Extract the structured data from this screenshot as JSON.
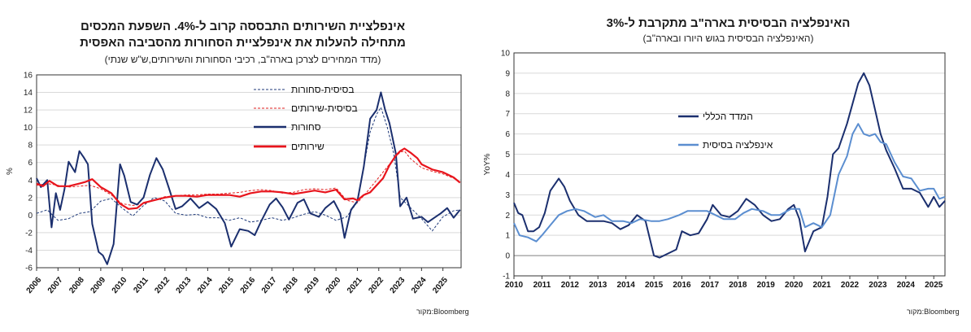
{
  "left_chart": {
    "title_lines": [
      "אינפלציית השירותים התבססה קרוב ל-4%. השפעת המכסים",
      "מתחילה להעלות את אינפלציית הסחורות מהסביבה האפסית"
    ],
    "subtitle": "(מדד המחירים לצרכן בארה\"ב, רכיבי הסחורות והשירותים,ש\"ש שנתי)",
    "source": "מקור:Bloomberg",
    "ylabel": "%",
    "y_ticks": [
      "16",
      "14",
      "12",
      "10",
      "8",
      "6",
      "4",
      "2",
      "0",
      "-2",
      "-4",
      "-6"
    ],
    "x_ticks": [
      "2006",
      "2007",
      "2008",
      "2009",
      "2010",
      "2011",
      "2012",
      "2013",
      "2014",
      "2015",
      "2016",
      "2017",
      "2018",
      "2019",
      "2020",
      "2021",
      "2022",
      "2023",
      "2024",
      "2025"
    ],
    "legend": [
      "בסיסית-סחורות",
      "בסיסית-שירותים",
      "סחורות",
      "שירותים"
    ]
  },
  "right_chart": {
    "title": "האינפלציה הבסיסית בארה\"ב מתקרבת ל-3%",
    "subtitle": "(האינפלציה הבסיסית בגוש היורו ובארה\"ב)",
    "source": "מקור:Bloomberg",
    "ylabel": "YoY%",
    "y_ticks": [
      "10",
      "9",
      "8",
      "7",
      "6",
      "5",
      "4",
      "3",
      "2",
      "1",
      "0",
      "-1"
    ],
    "x_ticks": [
      "2010",
      "2011",
      "2012",
      "2013",
      "2014",
      "2015",
      "2016",
      "2017",
      "2018",
      "2019",
      "2020",
      "2021",
      "2022",
      "2023",
      "2024",
      "2025"
    ],
    "legend": [
      "המדד הכללי",
      "אינפלציה בסיסית"
    ]
  },
  "chart_data": [
    {
      "type": "line",
      "title": "אינפלציית השירותים התבססה קרוב ל-4%. השפעת המכסים מתחילה להעלות את אינפלציית הסחורות מהסביבה האפסית",
      "xlabel": "",
      "ylabel": "%",
      "xlim": [
        2006.0,
        2025.85
      ],
      "ylim": [
        -6,
        16
      ],
      "grid": "horizontal",
      "legend_position": "top-right",
      "series": [
        {
          "name": "בסיסית-סחורות",
          "style": "dashed",
          "color": "#1f3a7a",
          "x": [
            2006.0,
            2006.5,
            2007.0,
            2007.5,
            2008.0,
            2008.5,
            2009.0,
            2009.5,
            2010.0,
            2010.5,
            2011.0,
            2011.5,
            2012.0,
            2012.5,
            2013.0,
            2013.5,
            2014.0,
            2014.5,
            2015.0,
            2015.5,
            2016.0,
            2016.5,
            2017.0,
            2017.5,
            2018.0,
            2018.5,
            2019.0,
            2019.5,
            2020.0,
            2020.5,
            2021.0,
            2021.3,
            2021.6,
            2021.9,
            2022.1,
            2022.4,
            2022.7,
            2023.0,
            2023.5,
            2024.0,
            2024.5,
            2025.0,
            2025.5,
            2025.8
          ],
          "y": [
            0.2,
            0.6,
            -0.6,
            -0.4,
            0.2,
            0.4,
            1.6,
            1.9,
            0.8,
            -0.1,
            1.1,
            2.0,
            1.6,
            0.2,
            0.0,
            0.1,
            -0.3,
            -0.3,
            -0.6,
            -0.3,
            -0.8,
            -0.6,
            -0.3,
            -0.6,
            -0.3,
            0.1,
            0.4,
            0.0,
            -0.6,
            -0.2,
            1.5,
            5.5,
            9.5,
            11.5,
            12.3,
            10.0,
            7.0,
            2.0,
            0.8,
            -0.4,
            -1.8,
            -0.2,
            0.5,
            0.6
          ]
        },
        {
          "name": "בסיסית-שירותים",
          "style": "dashed",
          "color": "#e02020",
          "x": [
            2006.0,
            2006.5,
            2007.0,
            2007.5,
            2008.0,
            2008.5,
            2009.0,
            2009.5,
            2010.0,
            2010.5,
            2011.0,
            2011.5,
            2012.0,
            2012.5,
            2013.0,
            2013.5,
            2014.0,
            2014.5,
            2015.0,
            2015.5,
            2016.0,
            2016.5,
            2017.0,
            2017.5,
            2018.0,
            2018.5,
            2019.0,
            2019.5,
            2020.0,
            2020.5,
            2021.0,
            2021.5,
            2022.0,
            2022.5,
            2023.0,
            2023.2,
            2023.5,
            2024.0,
            2024.5,
            2025.0,
            2025.5,
            2025.8
          ],
          "y": [
            3.4,
            3.6,
            3.4,
            3.2,
            3.3,
            3.4,
            3.0,
            2.3,
            1.3,
            1.1,
            1.3,
            1.7,
            2.1,
            2.2,
            2.3,
            2.3,
            2.4,
            2.4,
            2.5,
            2.6,
            2.8,
            2.9,
            2.8,
            2.5,
            2.6,
            2.9,
            3.0,
            2.9,
            3.1,
            1.7,
            1.4,
            2.8,
            4.3,
            5.8,
            7.2,
            7.3,
            6.4,
            5.4,
            5.0,
            4.7,
            4.2,
            3.8
          ]
        },
        {
          "name": "סחורות",
          "style": "solid",
          "color": "#1b2f6e",
          "x": [
            2006.0,
            2006.2,
            2006.5,
            2006.7,
            2006.9,
            2007.1,
            2007.3,
            2007.5,
            2007.8,
            2008.0,
            2008.2,
            2008.4,
            2008.6,
            2008.9,
            2009.1,
            2009.3,
            2009.6,
            2009.9,
            2010.1,
            2010.4,
            2010.7,
            2011.0,
            2011.3,
            2011.6,
            2011.9,
            2012.2,
            2012.5,
            2012.8,
            2013.2,
            2013.6,
            2014.0,
            2014.4,
            2014.8,
            2015.1,
            2015.5,
            2015.9,
            2016.2,
            2016.5,
            2016.9,
            2017.2,
            2017.5,
            2017.8,
            2018.2,
            2018.5,
            2018.8,
            2019.2,
            2019.5,
            2019.9,
            2020.2,
            2020.4,
            2020.7,
            2021.0,
            2021.3,
            2021.6,
            2021.9,
            2022.1,
            2022.3,
            2022.5,
            2022.8,
            2023.0,
            2023.3,
            2023.6,
            2024.0,
            2024.3,
            2024.6,
            2024.9,
            2025.2,
            2025.5,
            2025.8
          ],
          "y": [
            4.2,
            3.2,
            4.0,
            -1.4,
            2.5,
            0.6,
            2.9,
            6.1,
            4.9,
            7.3,
            6.6,
            5.8,
            -1.0,
            -4.2,
            -4.6,
            -5.6,
            -3.3,
            5.8,
            4.5,
            1.5,
            1.2,
            2.0,
            4.6,
            6.5,
            5.2,
            3.0,
            0.7,
            1.0,
            1.9,
            0.8,
            1.5,
            0.7,
            -0.9,
            -3.6,
            -1.6,
            -1.8,
            -2.3,
            -0.7,
            1.2,
            1.9,
            0.9,
            -0.5,
            1.4,
            1.8,
            0.2,
            -0.2,
            0.8,
            1.6,
            0.2,
            -2.6,
            0.6,
            1.6,
            5.5,
            11.0,
            12.0,
            14.0,
            12.0,
            10.5,
            7.0,
            1.0,
            2.0,
            -0.4,
            -0.2,
            -0.8,
            -0.3,
            0.2,
            0.8,
            -0.3,
            0.6
          ]
        },
        {
          "name": "שירותים",
          "style": "solid",
          "color": "#e8141c",
          "x": [
            2006.0,
            2006.3,
            2006.6,
            2007.0,
            2007.5,
            2008.0,
            2008.3,
            2008.6,
            2009.0,
            2009.5,
            2009.9,
            2010.3,
            2010.7,
            2011.0,
            2011.5,
            2012.0,
            2012.5,
            2013.0,
            2013.5,
            2014.0,
            2014.5,
            2015.0,
            2015.5,
            2016.0,
            2016.5,
            2017.0,
            2017.5,
            2018.0,
            2018.5,
            2019.0,
            2019.5,
            2020.0,
            2020.4,
            2020.8,
            2021.0,
            2021.3,
            2021.6,
            2021.9,
            2022.2,
            2022.5,
            2022.8,
            2023.0,
            2023.2,
            2023.5,
            2023.8,
            2024.0,
            2024.5,
            2025.0,
            2025.5,
            2025.8
          ],
          "y": [
            3.6,
            3.3,
            3.9,
            3.3,
            3.3,
            3.6,
            3.8,
            4.1,
            3.2,
            2.5,
            1.3,
            0.7,
            0.8,
            1.4,
            1.7,
            2.0,
            2.2,
            2.2,
            2.1,
            2.3,
            2.3,
            2.3,
            2.1,
            2.5,
            2.7,
            2.7,
            2.6,
            2.4,
            2.6,
            2.8,
            2.6,
            2.9,
            1.8,
            1.9,
            1.7,
            2.3,
            2.6,
            3.4,
            4.2,
            5.7,
            6.8,
            7.3,
            7.6,
            7.1,
            6.5,
            5.8,
            5.2,
            4.9,
            4.3,
            3.7
          ]
        }
      ]
    },
    {
      "type": "line",
      "title": "האינפלציה הבסיסית בארה\"ב מתקרבת ל-3%",
      "subtitle": "(האינפלציה הבסיסית בגוש היורו ובארה\"ב)",
      "xlabel": "",
      "ylabel": "YoY%",
      "xlim": [
        2010.0,
        2025.4
      ],
      "ylim": [
        -1,
        10
      ],
      "grid": "horizontal",
      "legend_position": "left-middle",
      "series": [
        {
          "name": "המדד הכללי",
          "style": "solid",
          "color": "#1b2f6e",
          "x": [
            2010.0,
            2010.15,
            2010.3,
            2010.5,
            2010.7,
            2010.9,
            2011.1,
            2011.3,
            2011.6,
            2011.8,
            2012.0,
            2012.3,
            2012.6,
            2012.9,
            2013.2,
            2013.5,
            2013.8,
            2014.1,
            2014.4,
            2014.7,
            2015.0,
            2015.2,
            2015.5,
            2015.8,
            2016.0,
            2016.3,
            2016.6,
            2016.9,
            2017.1,
            2017.4,
            2017.7,
            2018.0,
            2018.3,
            2018.6,
            2018.9,
            2019.2,
            2019.5,
            2019.8,
            2020.0,
            2020.2,
            2020.4,
            2020.7,
            2021.0,
            2021.2,
            2021.4,
            2021.6,
            2021.9,
            2022.1,
            2022.3,
            2022.5,
            2022.7,
            2022.9,
            2023.1,
            2023.3,
            2023.6,
            2023.9,
            2024.2,
            2024.5,
            2024.8,
            2025.0,
            2025.2,
            2025.4
          ],
          "y": [
            2.6,
            2.1,
            2.0,
            1.2,
            1.2,
            1.4,
            2.1,
            3.2,
            3.8,
            3.4,
            2.7,
            2.0,
            1.7,
            1.7,
            1.7,
            1.6,
            1.3,
            1.5,
            2.0,
            1.7,
            0.0,
            -0.1,
            0.1,
            0.3,
            1.2,
            1.0,
            1.1,
            1.8,
            2.5,
            2.0,
            1.9,
            2.2,
            2.8,
            2.5,
            2.0,
            1.7,
            1.8,
            2.3,
            2.5,
            1.8,
            0.2,
            1.2,
            1.4,
            2.9,
            5.0,
            5.3,
            6.5,
            7.5,
            8.5,
            9.0,
            8.4,
            7.2,
            6.0,
            5.2,
            4.3,
            3.3,
            3.3,
            3.1,
            2.4,
            2.9,
            2.4,
            2.7
          ]
        },
        {
          "name": "אינפלציה בסיסית",
          "style": "solid",
          "color": "#5b8ed0",
          "x": [
            2010.0,
            2010.2,
            2010.5,
            2010.8,
            2011.0,
            2011.3,
            2011.6,
            2011.9,
            2012.2,
            2012.5,
            2012.9,
            2013.2,
            2013.5,
            2013.9,
            2014.2,
            2014.5,
            2014.9,
            2015.2,
            2015.5,
            2015.9,
            2016.2,
            2016.6,
            2016.9,
            2017.2,
            2017.5,
            2017.9,
            2018.2,
            2018.5,
            2018.9,
            2019.2,
            2019.5,
            2019.9,
            2020.2,
            2020.4,
            2020.7,
            2021.0,
            2021.3,
            2021.6,
            2021.9,
            2022.1,
            2022.3,
            2022.5,
            2022.7,
            2022.9,
            2023.1,
            2023.3,
            2023.6,
            2023.9,
            2024.2,
            2024.5,
            2024.8,
            2025.0,
            2025.2,
            2025.4
          ],
          "y": [
            1.6,
            1.0,
            0.9,
            0.7,
            1.0,
            1.5,
            2.0,
            2.2,
            2.3,
            2.2,
            1.9,
            2.0,
            1.7,
            1.7,
            1.6,
            1.8,
            1.7,
            1.7,
            1.8,
            2.0,
            2.2,
            2.2,
            2.2,
            2.0,
            1.8,
            1.8,
            2.1,
            2.3,
            2.2,
            2.0,
            2.0,
            2.3,
            2.3,
            1.4,
            1.6,
            1.4,
            2.0,
            4.0,
            4.9,
            6.0,
            6.5,
            6.0,
            5.9,
            6.0,
            5.6,
            5.5,
            4.6,
            3.9,
            3.8,
            3.2,
            3.3,
            3.3,
            2.8,
            2.9
          ]
        }
      ]
    }
  ]
}
